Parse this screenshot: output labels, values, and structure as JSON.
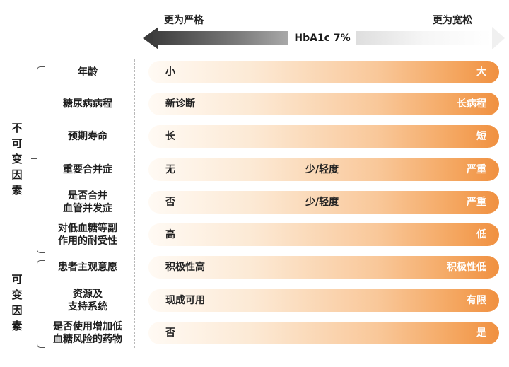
{
  "scale": {
    "left_label": "更为严格",
    "right_label": "更为宽松",
    "center_label": "HbA1c 7%"
  },
  "groups": [
    {
      "label": "不\n可\n变\n因\n素"
    },
    {
      "label": "可\n变\n因\n素"
    }
  ],
  "rows": [
    {
      "label": "年龄",
      "left": "小",
      "mid": "",
      "right": "大"
    },
    {
      "label": "糖尿病病程",
      "left": "新诊断",
      "mid": "",
      "right": "长病程"
    },
    {
      "label": "预期寿命",
      "left": "长",
      "mid": "",
      "right": "短"
    },
    {
      "label": "重要合并症",
      "left": "无",
      "mid": "少/轻度",
      "right": "严重"
    },
    {
      "label": "是否合并\n血管并发症",
      "left": "否",
      "mid": "少/轻度",
      "right": "严重"
    },
    {
      "label": "对低血糖等副\n作用的耐受性",
      "left": "高",
      "mid": "",
      "right": "低"
    },
    {
      "label": "患者主观意愿",
      "left": "积极性高",
      "mid": "",
      "right": "积极性低"
    },
    {
      "label": "资源及\n支持系统",
      "left": "现成可用",
      "mid": "",
      "right": "有限"
    },
    {
      "label": "是否使用增加低\n血糖风险的药物",
      "left": "否",
      "mid": "",
      "right": "是"
    }
  ],
  "colors": {
    "bar_start": "#fffaf4",
    "bar_end": "#f09040",
    "arrow_dark": "#3a3a3a"
  }
}
